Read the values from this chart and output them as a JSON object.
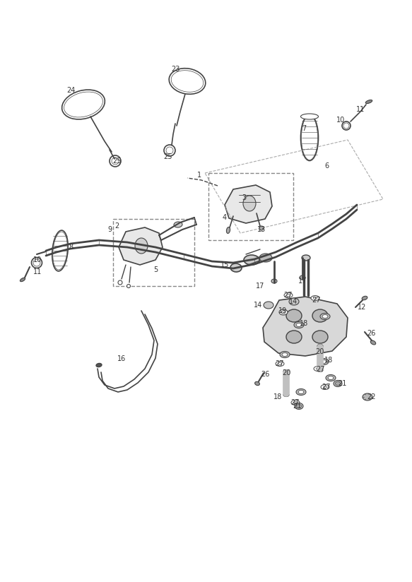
{
  "bg_color": "#ffffff",
  "line_color": "#444444",
  "label_color": "#333333",
  "font_size": 7,
  "label_positions": [
    [
      "1",
      282,
      248
    ],
    [
      "2",
      165,
      320
    ],
    [
      "3",
      345,
      280
    ],
    [
      "4",
      318,
      308
    ],
    [
      "5",
      220,
      382
    ],
    [
      "6",
      462,
      235
    ],
    [
      "7",
      430,
      182
    ],
    [
      "8",
      100,
      350
    ],
    [
      "9",
      155,
      325
    ],
    [
      "10",
      53,
      368
    ],
    [
      "11",
      53,
      385
    ],
    [
      "10",
      482,
      170
    ],
    [
      "11",
      510,
      155
    ],
    [
      "12",
      512,
      435
    ],
    [
      "13",
      370,
      325
    ],
    [
      "14",
      365,
      432
    ],
    [
      "15",
      318,
      375
    ],
    [
      "16",
      172,
      508
    ],
    [
      "17",
      368,
      405
    ],
    [
      "17",
      428,
      398
    ],
    [
      "18",
      430,
      458
    ],
    [
      "18",
      465,
      510
    ],
    [
      "18",
      393,
      562
    ],
    [
      "19",
      400,
      440
    ],
    [
      "20",
      452,
      498
    ],
    [
      "20",
      405,
      528
    ],
    [
      "21",
      484,
      543
    ],
    [
      "21",
      420,
      575
    ],
    [
      "22",
      525,
      562
    ],
    [
      "23",
      248,
      98
    ],
    [
      "24",
      100,
      128
    ],
    [
      "25",
      165,
      228
    ],
    [
      "25",
      237,
      222
    ],
    [
      "26",
      525,
      472
    ],
    [
      "26",
      375,
      530
    ],
    [
      "27",
      407,
      418
    ],
    [
      "27",
      448,
      425
    ],
    [
      "27",
      396,
      515
    ],
    [
      "27",
      453,
      523
    ],
    [
      "27",
      418,
      570
    ],
    [
      "27",
      462,
      548
    ],
    [
      "14",
      415,
      427
    ]
  ]
}
